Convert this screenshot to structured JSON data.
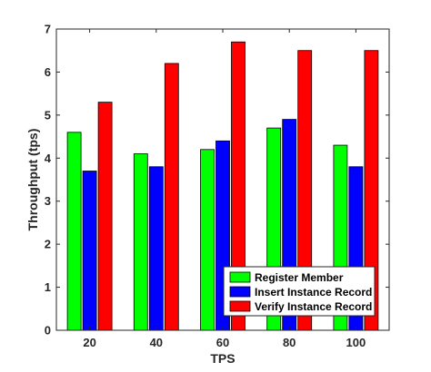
{
  "chart_data": {
    "type": "bar",
    "title": "",
    "xlabel": "TPS",
    "ylabel": "Throughput (tps)",
    "categories": [
      "20",
      "40",
      "60",
      "80",
      "100"
    ],
    "ylim": [
      0,
      7
    ],
    "yticks": [
      "0",
      "1",
      "2",
      "3",
      "4",
      "5",
      "6",
      "7"
    ],
    "grid": false,
    "legend_position": "bottom-right",
    "series": [
      {
        "name": "Register Member",
        "color": "#00ff00",
        "values": [
          4.6,
          4.1,
          4.2,
          4.7,
          4.3
        ]
      },
      {
        "name": "Insert Instance Record",
        "color": "#0000ff",
        "values": [
          3.7,
          3.8,
          4.4,
          4.9,
          3.8
        ]
      },
      {
        "name": "Verify Instance Record",
        "color": "#ff0000",
        "values": [
          5.3,
          6.2,
          6.7,
          6.5,
          6.5
        ]
      }
    ]
  }
}
